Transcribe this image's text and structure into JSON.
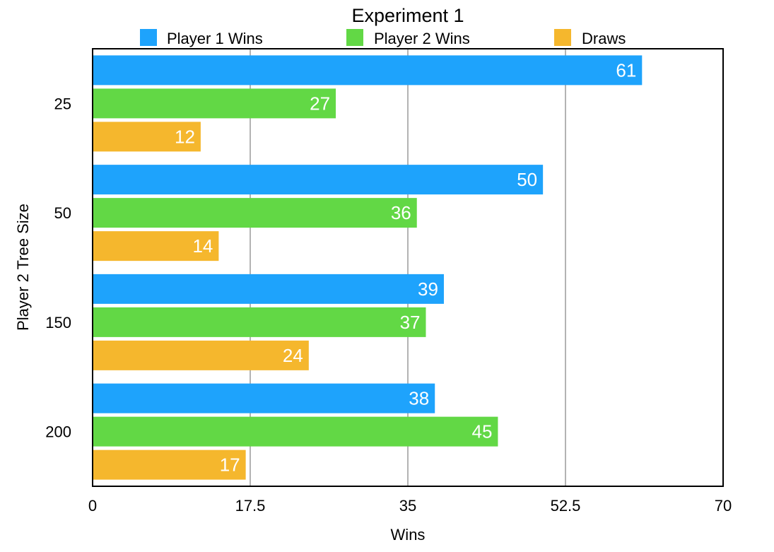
{
  "chart_data": {
    "type": "bar",
    "orientation": "horizontal",
    "title": "Experiment 1",
    "xlabel": "Wins",
    "ylabel": "Player 2 Tree Size",
    "categories": [
      "25",
      "50",
      "150",
      "200"
    ],
    "series": [
      {
        "name": "Player 1 Wins",
        "color": "#1ea3fc",
        "values": [
          61,
          50,
          39,
          38
        ]
      },
      {
        "name": "Player 2 Wins",
        "color": "#62d845",
        "values": [
          27,
          36,
          37,
          45
        ]
      },
      {
        "name": "Draws",
        "color": "#f5b72d",
        "values": [
          12,
          14,
          24,
          17
        ]
      }
    ],
    "xlim": [
      0,
      70
    ],
    "xticks": [
      "0",
      "17.5",
      "35",
      "52.5",
      "70"
    ],
    "grid": "vertical",
    "legend_position": "top"
  }
}
